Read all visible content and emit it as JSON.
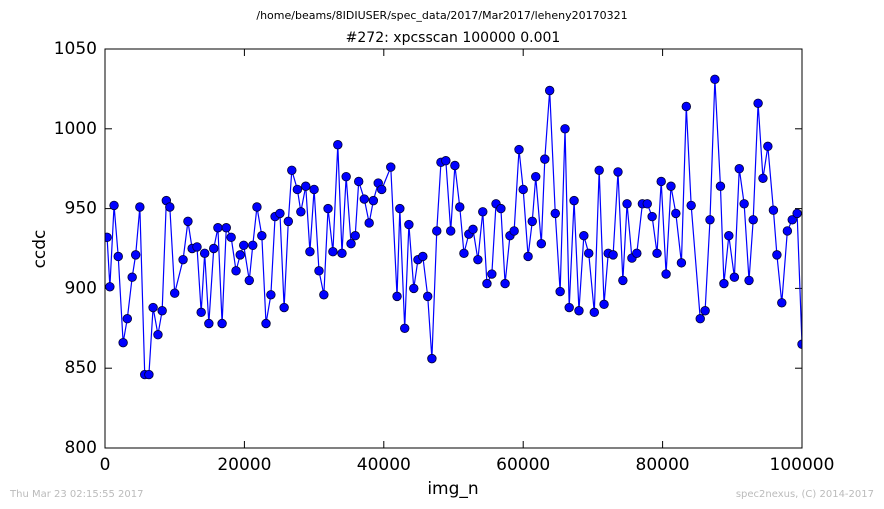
{
  "chart_data": {
    "type": "line",
    "suptitle": "/home/beams/8IDIUSER/spec_data/2017/Mar2017/leheny20170321",
    "title": "#272: xpcsscan 100000 0.001",
    "xlabel": "img_n",
    "ylabel": "ccdc",
    "footer_left": "Thu Mar 23 02:15:55 2017",
    "footer_right": "spec2nexus, (C) 2014-2017",
    "xlim": [
      0,
      100000
    ],
    "xticks": [
      0,
      20000,
      40000,
      60000,
      80000,
      100000
    ],
    "ylim": [
      800,
      1050
    ],
    "yticks": [
      800,
      850,
      900,
      950,
      1000,
      1050
    ],
    "x": [
      300,
      700,
      1300,
      1900,
      2600,
      3200,
      3900,
      4400,
      5000,
      5700,
      6300,
      6900,
      7600,
      8200,
      8800,
      9300,
      10000,
      11200,
      11900,
      12500,
      13200,
      13800,
      14300,
      14900,
      15600,
      16200,
      16800,
      17400,
      18100,
      18800,
      19400,
      19900,
      20700,
      21200,
      21800,
      22500,
      23100,
      23800,
      24400,
      25100,
      25700,
      26300,
      26800,
      27600,
      28100,
      28800,
      29400,
      30000,
      30700,
      31400,
      32000,
      32700,
      33400,
      34000,
      34600,
      35300,
      35900,
      36400,
      37200,
      37900,
      38500,
      39200,
      39700,
      41000,
      41900,
      42300,
      43000,
      43600,
      44300,
      44900,
      45600,
      46300,
      46900,
      47600,
      48200,
      48900,
      49600,
      50200,
      50900,
      51500,
      52200,
      52800,
      53500,
      54200,
      54800,
      55500,
      56100,
      56800,
      57400,
      58100,
      58700,
      59400,
      60000,
      60700,
      61300,
      61800,
      62600,
      63100,
      63800,
      64600,
      65300,
      66000,
      66600,
      67300,
      68000,
      68700,
      69400,
      70200,
      70900,
      71600,
      72200,
      72900,
      73600,
      74300,
      74900,
      75600,
      76300,
      77100,
      77800,
      78500,
      79200,
      79800,
      80500,
      81200,
      81900,
      82700,
      83400,
      84100,
      85400,
      86100,
      86800,
      87500,
      88300,
      88800,
      89500,
      90300,
      91000,
      91700,
      92400,
      93000,
      93700,
      94400,
      95100,
      95900,
      96400,
      97100,
      97900,
      98600,
      99300,
      100000
    ],
    "series": [
      {
        "name": "ccdc",
        "color": "#0000ff",
        "values": [
          932,
          901,
          952,
          920,
          866,
          881,
          907,
          921,
          951,
          846,
          846,
          888,
          871,
          886,
          955,
          951,
          897,
          918,
          942,
          925,
          926,
          885,
          922,
          878,
          925,
          938,
          878,
          938,
          932,
          911,
          921,
          927,
          905,
          927,
          951,
          933,
          878,
          896,
          945,
          947,
          888,
          942,
          974,
          962,
          948,
          964,
          923,
          962,
          911,
          896,
          950,
          923,
          990,
          922,
          970,
          928,
          933,
          967,
          956,
          941,
          955,
          966,
          962,
          976,
          895,
          950,
          875,
          940,
          900,
          918,
          920,
          895,
          856,
          936,
          979,
          980,
          936,
          977,
          951,
          922,
          934,
          937,
          918,
          948,
          903,
          909,
          953,
          950,
          903,
          933,
          936,
          987,
          962,
          920,
          942,
          970,
          928,
          981,
          1024,
          947,
          898,
          1000,
          888,
          955,
          886,
          933,
          922,
          885,
          974,
          890,
          922,
          921,
          973,
          905,
          953,
          919,
          922,
          953,
          953,
          945,
          922,
          967,
          909,
          964,
          947,
          916,
          1014,
          952,
          881,
          886,
          943,
          1031,
          964,
          903,
          933,
          907,
          975,
          953,
          905,
          943,
          1016,
          969,
          989,
          949,
          921,
          891,
          936,
          943,
          947,
          865
        ]
      }
    ]
  }
}
